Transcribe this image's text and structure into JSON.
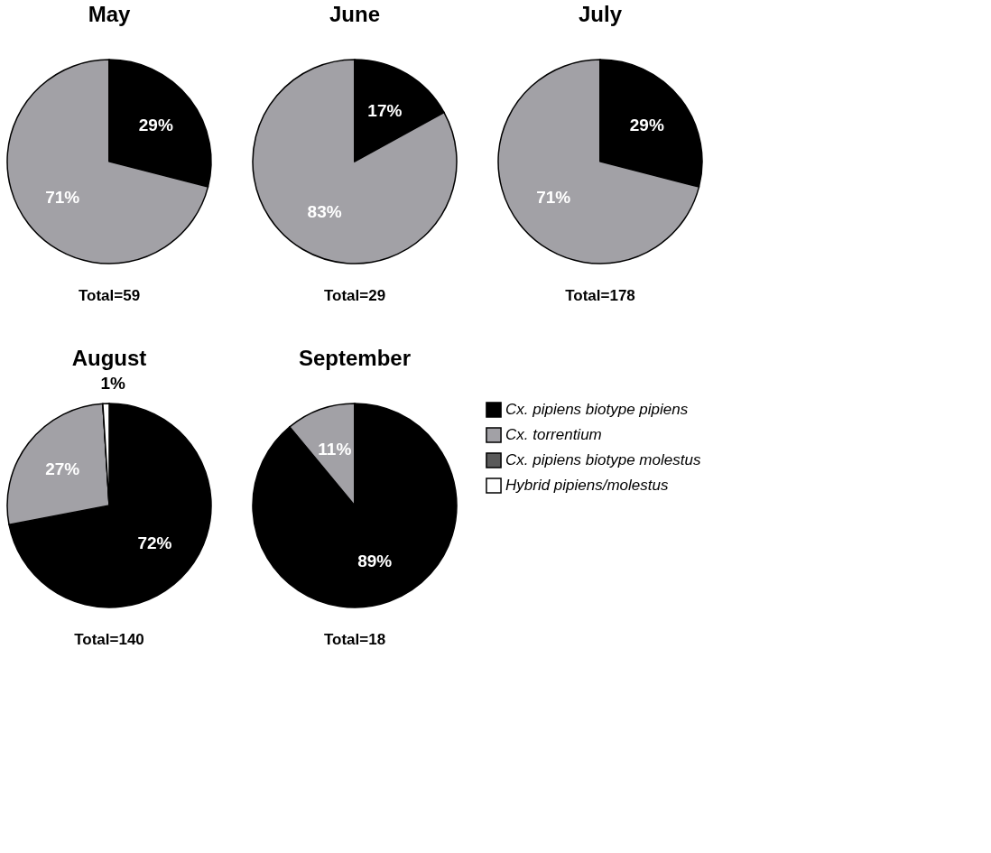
{
  "chart_data": [
    {
      "type": "pie",
      "title": "May",
      "categories": [
        null,
        null,
        null,
        null
      ],
      "values": [
        29,
        71,
        0,
        0
      ],
      "colors": [
        "#000000",
        "#a2a1a6",
        "#5a5a5a",
        "#ffffff"
      ],
      "value_labels": [
        "29%",
        "71%",
        null,
        null
      ],
      "annotations": [
        "Total=59"
      ]
    },
    {
      "type": "pie",
      "title": "June",
      "categories": [
        null,
        null,
        null,
        null
      ],
      "values": [
        17,
        83,
        0,
        0
      ],
      "colors": [
        "#000000",
        "#a2a1a6",
        "#5a5a5a",
        "#ffffff"
      ],
      "value_labels": [
        "17%",
        "83%",
        null,
        null
      ],
      "annotations": [
        "Total=29"
      ]
    },
    {
      "type": "pie",
      "title": "July",
      "categories": [
        null,
        null,
        null,
        null
      ],
      "values": [
        29,
        71,
        0,
        0
      ],
      "colors": [
        "#000000",
        "#a2a1a6",
        "#5a5a5a",
        "#ffffff"
      ],
      "value_labels": [
        "29%",
        "71%",
        null,
        null
      ],
      "annotations": [
        "Total=178"
      ]
    },
    {
      "type": "pie",
      "title": "August",
      "categories": [
        null,
        null,
        null,
        null
      ],
      "values": [
        72,
        27,
        0,
        1
      ],
      "colors": [
        "#000000",
        "#a2a1a6",
        "#5a5a5a",
        "#ffffff"
      ],
      "value_labels": [
        "72%",
        "27%",
        null,
        "1%"
      ],
      "annotations": [
        "Total=140"
      ]
    },
    {
      "type": "pie",
      "title": "September",
      "categories": [
        "Cx. pipiens biotype pipiens",
        "Cx. torrentium",
        "Cx. pipiens biotype molestus",
        "Hybrid pipiens/molestus"
      ],
      "values": [
        89,
        11,
        0,
        0
      ],
      "colors": [
        "#000000",
        "#a2a1a6",
        "#5a5a5a",
        "#ffffff"
      ],
      "value_labels": [
        "89%",
        "11%",
        null,
        null
      ],
      "annotations": [
        "Total=18"
      ],
      "legend": "right"
    }
  ]
}
